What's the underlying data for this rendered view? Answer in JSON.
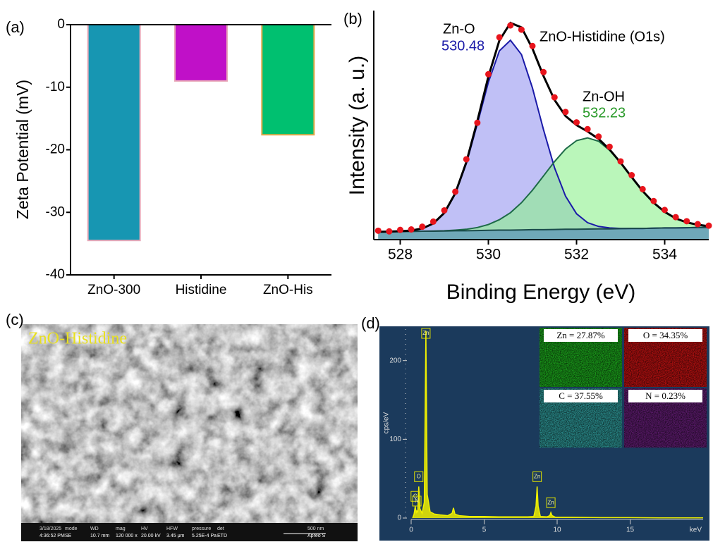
{
  "chart_data": [
    {
      "type": "bar",
      "panel_label": "(a)",
      "ylabel": "Zeta Potential (mV)",
      "categories": [
        "ZnO-300",
        "Histidine",
        "ZnO-His"
      ],
      "values": [
        -34.5,
        -9.0,
        -17.6
      ],
      "colors": [
        "#1796b2",
        "#c010c8",
        "#00c070"
      ],
      "edgecolors": [
        "#e8a8b8",
        "#e8a8b8",
        "#e0a848"
      ],
      "ylim": [
        -40,
        0
      ],
      "yticks": [
        -40,
        -30,
        -20,
        -10,
        0
      ]
    },
    {
      "type": "line",
      "panel_label": "(b)",
      "xlabel": "Binding Energy (eV)",
      "ylabel": "Intensity (a. u.)",
      "annotations": [
        "ZnO-Histidine (O1s)"
      ],
      "x": [
        527.5,
        527.75,
        528,
        528.25,
        528.5,
        528.75,
        529,
        529.25,
        529.5,
        529.75,
        530,
        530.25,
        530.5,
        530.75,
        531,
        531.25,
        531.5,
        531.75,
        532,
        532.25,
        532.5,
        532.75,
        533,
        533.25,
        533.5,
        533.75,
        534,
        534.25,
        534.5,
        534.75,
        535
      ],
      "series": [
        {
          "name": "Zn-O",
          "center": 530.48,
          "color": "#1a1aa8",
          "fill": "rgba(150,150,240,0.6)",
          "values": [
            0.7,
            0.8,
            1.0,
            1.3,
            2.3,
            4.5,
            9.5,
            18.6,
            32.9,
            51.6,
            71.2,
            86.0,
            91.0,
            84.3,
            68.5,
            48.9,
            30.9,
            17.5,
            9.2,
            5.0,
            3.2,
            2.5,
            2.3,
            2.3,
            2.3,
            2.4,
            2.5,
            2.5,
            2.6,
            2.7,
            2.7
          ]
        },
        {
          "name": "Zn-OH",
          "center": 532.23,
          "color": "#1d6a48",
          "label_color": "#2a9a2a",
          "fill": "rgba(140,240,140,0.6)",
          "values": [
            0.7,
            0.8,
            0.8,
            0.9,
            1.0,
            1.1,
            1.2,
            1.5,
            1.9,
            2.7,
            4.1,
            6.4,
            9.7,
            14.4,
            20.3,
            27.0,
            33.8,
            39.7,
            43.7,
            45.0,
            43.4,
            39.1,
            33.2,
            26.5,
            19.9,
            14.4,
            10.1,
            7.0,
            5.1,
            4.0,
            3.3
          ]
        },
        {
          "color": "#1a4a4a",
          "fill": "#6fa8b8",
          "values": [
            0.7,
            0.8,
            0.8,
            0.9,
            1.0,
            1.0,
            1.1,
            1.2,
            1.2,
            1.3,
            1.4,
            1.5,
            1.5,
            1.6,
            1.7,
            1.7,
            1.8,
            1.9,
            1.9,
            2.0,
            2.1,
            2.1,
            2.2,
            2.3,
            2.3,
            2.4,
            2.5,
            2.5,
            2.6,
            2.7,
            2.7
          ]
        },
        {
          "color": "#000000",
          "values": [
            0.7,
            0.8,
            1.0,
            1.3,
            2.3,
            4.6,
            9.6,
            18.9,
            33.6,
            53.0,
            73.9,
            90.9,
            99.2,
            97.1,
            87.1,
            74.2,
            62.9,
            55.3,
            51.0,
            48.0,
            44.5,
            39.5,
            33.3,
            26.5,
            19.9,
            14.4,
            10.1,
            7.0,
            5.1,
            4.0,
            3.3
          ]
        },
        {
          "color": "#e8141c",
          "marker": true,
          "values": [
            1.2,
            0.9,
            1.6,
            1.8,
            3.1,
            5.5,
            10.8,
            19.6,
            34.9,
            52.1,
            75.0,
            92.4,
            98.0,
            96.0,
            88.3,
            76.0,
            64.1,
            57.2,
            52.3,
            49.1,
            45.6,
            40.8,
            33.9,
            27.4,
            20.8,
            15.2,
            11.0,
            7.6,
            5.7,
            4.3,
            3.6
          ]
        }
      ],
      "xlim": [
        527.4,
        535
      ],
      "xticks": [
        528,
        530,
        532,
        534
      ],
      "ylim": [
        -3,
        105
      ]
    },
    {
      "type": "image",
      "panel_label": "(c)",
      "title": "ZnO-Histidine",
      "footer": [
        "3/18/2025",
        "4:36:52 PM",
        "mode",
        "SE",
        "WD",
        "10.7 mm",
        "mag",
        "120 000 x",
        "HV",
        "20.00 kV",
        "HFW",
        "3.45 μm",
        "pressure",
        "5.25E-4 Pa",
        "det",
        "ETD",
        "500 nm",
        "Apreo S"
      ]
    },
    {
      "type": "area",
      "panel_label": "(d)",
      "xlabel": "keV",
      "ylabel": "cps/eV",
      "color": "#f0f000",
      "x": [
        0.1,
        0.2,
        0.28,
        0.35,
        0.39,
        0.45,
        0.52,
        0.6,
        0.75,
        0.9,
        1.01,
        1.1,
        1.3,
        1.6,
        2.0,
        2.5,
        2.8,
        2.9,
        3.0,
        3.3,
        4,
        5,
        6,
        7,
        8,
        8.4,
        8.55,
        8.63,
        8.7,
        8.85,
        9.3,
        9.5,
        9.57,
        9.65,
        9.9,
        11,
        13,
        15,
        17,
        20
      ],
      "values": [
        0,
        5,
        15,
        6,
        9,
        8,
        40,
        12,
        6,
        20,
        238,
        30,
        8,
        5,
        4,
        3,
        6,
        13,
        5,
        3,
        2,
        2,
        1.5,
        1.5,
        1.5,
        2,
        15,
        40,
        15,
        2,
        1.5,
        3,
        7,
        3,
        1,
        1,
        0.5,
        0.5,
        0.3,
        0.2
      ],
      "peaks": [
        {
          "label": "Zn",
          "x": 1.01
        },
        {
          "label": "O",
          "x": 0.52
        },
        {
          "label": "C",
          "x": 0.28
        },
        {
          "label": "N",
          "x": 0.39
        },
        {
          "label": "Zn",
          "x": 8.63
        },
        {
          "label": "Zn",
          "x": 9.57
        }
      ],
      "maps": [
        {
          "label": "Zn = 27.87%",
          "color": "#1a9a1a"
        },
        {
          "label": "O = 34.35%",
          "color": "#b01010"
        },
        {
          "label": "C = 37.55%",
          "color": "#2a8a8a"
        },
        {
          "label": "N = 0.23%",
          "color": "#5a1a6a"
        }
      ],
      "xlim": [
        0,
        20
      ],
      "xticks": [
        0,
        5,
        10,
        15
      ],
      "ylim": [
        0,
        240
      ],
      "yticks": [
        0,
        100,
        200
      ]
    }
  ]
}
